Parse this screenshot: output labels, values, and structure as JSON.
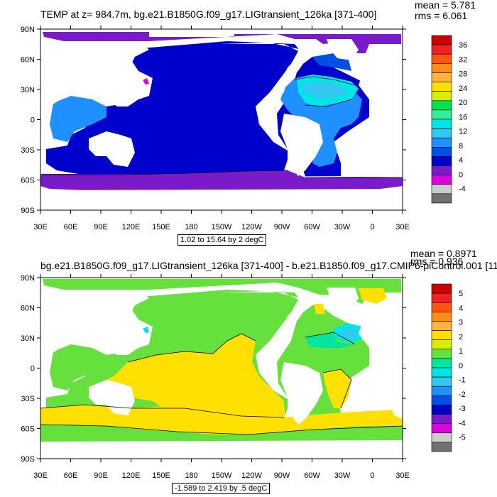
{
  "panels": [
    {
      "title": "TEMP at z= 984.7m, bg.e21.B1850G.f09_g17.LIGtransient_126ka [371-400]",
      "stats": {
        "mean": "mean = 5.781",
        "rms": "rms = 6.061"
      },
      "contour_info": "1.02 to 15.64 by 2 degC",
      "colorbar_labels": [
        "36",
        "32",
        "28",
        "24",
        "20",
        "16",
        "12",
        "8",
        "4",
        "0",
        "-4"
      ],
      "colorbar_colors": [
        "#cc0000",
        "#ee2222",
        "#ff5511",
        "#ff8c1a",
        "#ffb43c",
        "#ffe000",
        "#d8f000",
        "#00e050",
        "#33ee99",
        "#00e6e6",
        "#33c8f0",
        "#1e90ff",
        "#0050e6",
        "#0000cc",
        "#7a1ac8",
        "#dd00dd",
        "#cccccc",
        "#707070"
      ]
    },
    {
      "title": "bg.e21.B1850G.f09_g17.LIGtransient_126ka [371-400] - b.e21.B1850.f09_g17.CMIP6-piControl.001 [11",
      "stats": {
        "mean": "mean = 0.8971",
        "rms": "rms = 0.936"
      },
      "contour_info": "-1.589 to 2.419 by .5 degC",
      "colorbar_labels": [
        "5",
        "4",
        "3",
        "2",
        "1",
        "0",
        "-1",
        "-2",
        "-3",
        "-4",
        "-5"
      ],
      "colorbar_colors": [
        "#cc0000",
        "#ee2222",
        "#ff5511",
        "#ff8c1a",
        "#ffb43c",
        "#ffe000",
        "#d8f000",
        "#66e03c",
        "#00e6a0",
        "#00e6e6",
        "#33c8f0",
        "#1e90ff",
        "#0050e6",
        "#0000cc",
        "#7a1ac8",
        "#dd00dd",
        "#cccccc",
        "#707070"
      ]
    }
  ],
  "lat_labels": [
    "90N",
    "60N",
    "30N",
    "0",
    "30S",
    "60S",
    "90S"
  ],
  "lon_labels": [
    "30E",
    "60E",
    "90E",
    "120E",
    "150E",
    "180",
    "150W",
    "120W",
    "90W",
    "60W",
    "30W",
    "0",
    "30E"
  ]
}
